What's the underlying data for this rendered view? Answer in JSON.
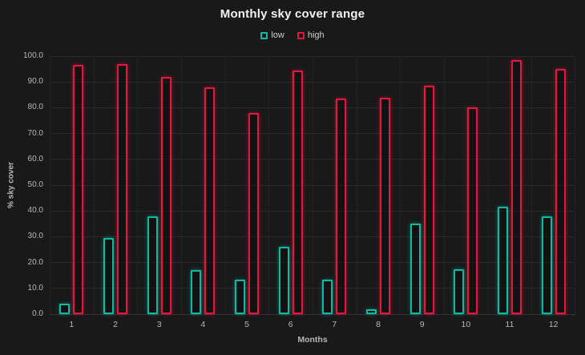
{
  "colors": {
    "background": "#191919",
    "grid_horizontal": "#2a2a2a",
    "grid_vertical": "#232323",
    "tick_text": "#b8b8b8",
    "title_text": "#f2f2f2",
    "low_accent": "#0fbaa4",
    "high_accent": "#e4173e"
  },
  "chart_data": {
    "type": "bar",
    "title": "Monthly sky cover range",
    "xlabel": "Months",
    "ylabel": "% sky cover",
    "categories": [
      "1",
      "2",
      "3",
      "4",
      "5",
      "6",
      "7",
      "8",
      "9",
      "10",
      "11",
      "12"
    ],
    "series": [
      {
        "name": "low",
        "color": "#0fbaa4",
        "values": [
          4,
          29.5,
          38,
          17,
          13.5,
          26,
          13.5,
          2,
          35,
          17.5,
          41.5,
          38
        ]
      },
      {
        "name": "high",
        "color": "#e4173e",
        "values": [
          96.5,
          97,
          92,
          88,
          78,
          94.5,
          83.5,
          84,
          88.5,
          80,
          98.5,
          95
        ]
      }
    ],
    "ylim": [
      0,
      100
    ],
    "ytick_labels": [
      "0.0",
      "10.0",
      "20.0",
      "30.0",
      "40.0",
      "50.0",
      "60.0",
      "70.0",
      "80.0",
      "90.0",
      "100.0"
    ],
    "grid": true,
    "legend_position": "top",
    "bar_style": "outline"
  }
}
